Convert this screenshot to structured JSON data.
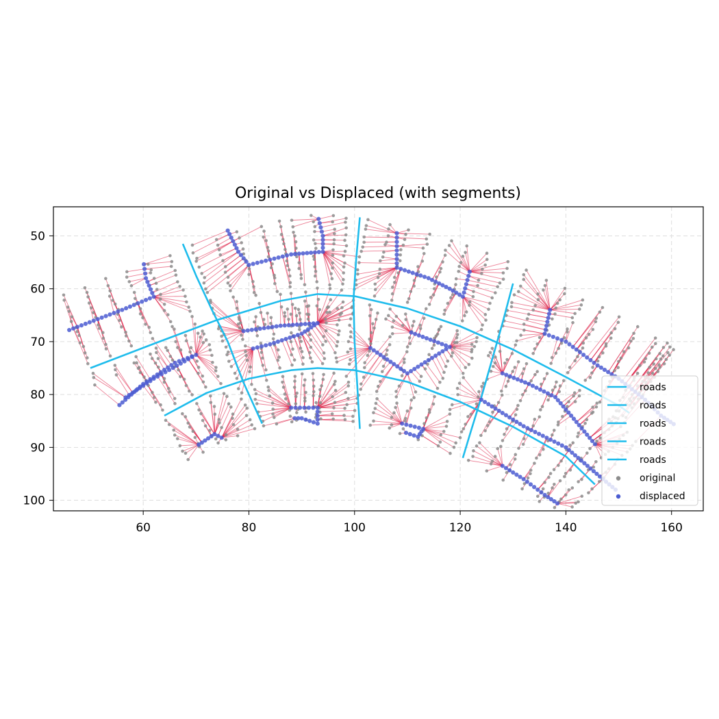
{
  "chart_data": {
    "type": "scatter",
    "title": "Original vs Displaced (with segments)",
    "xlabel": "",
    "ylabel": "",
    "xlim": [
      43,
      166
    ],
    "ylim": [
      102,
      44.5
    ],
    "y_inverted": true,
    "grid": true,
    "legend_placement": "lower right",
    "x_ticks": [
      "60",
      "80",
      "100",
      "120",
      "140",
      "160"
    ],
    "x_tick_values": [
      60,
      80,
      100,
      120,
      140,
      160
    ],
    "y_ticks": [
      "50",
      "60",
      "70",
      "80",
      "90",
      "100"
    ],
    "y_tick_values": [
      50,
      60,
      70,
      80,
      90,
      100
    ],
    "colors": {
      "roads": "#1ebcec",
      "original": "#8c8c8c",
      "displaced": "#4a5bd1",
      "segments": "#dc143c",
      "grid": "#dddddd"
    },
    "legend": [
      {
        "label": "roads",
        "kind": "line",
        "color": "#1ebcec"
      },
      {
        "label": "roads",
        "kind": "line",
        "color": "#1ebcec"
      },
      {
        "label": "roads",
        "kind": "line",
        "color": "#1ebcec"
      },
      {
        "label": "roads",
        "kind": "line",
        "color": "#1ebcec"
      },
      {
        "label": "roads",
        "kind": "line",
        "color": "#1ebcec"
      },
      {
        "label": "original",
        "kind": "marker",
        "color": "#8c8c8c"
      },
      {
        "label": "displaced",
        "kind": "marker",
        "color": "#4a5bd1"
      }
    ],
    "roads": [
      {
        "name": "roads",
        "x": [
          50,
          62,
          74,
          86,
          93,
          100,
          110,
          120,
          130,
          140,
          150,
          152
        ],
        "y": [
          75,
          70.4,
          65.9,
          62.3,
          61.0,
          61.4,
          63.7,
          67.1,
          71.5,
          76.7,
          82.1,
          83.5
        ]
      },
      {
        "name": "roads",
        "x": [
          64,
          72,
          80,
          88,
          93,
          100,
          110,
          120,
          130,
          140,
          145.5
        ],
        "y": [
          84,
          79.7,
          77.0,
          75.4,
          75.0,
          75.4,
          77.6,
          81.4,
          86.1,
          91.7,
          97.0
        ]
      },
      {
        "name": "roads",
        "x": [
          67.5,
          70,
          73,
          76,
          79,
          82.5
        ],
        "y": [
          51.5,
          57.5,
          64.0,
          70.0,
          77.8,
          85.5
        ]
      },
      {
        "name": "roads",
        "x": [
          101,
          100.3,
          99.8,
          100,
          100.5,
          101
        ],
        "y": [
          46.5,
          54.5,
          62.0,
          70.0,
          78.0,
          86.5
        ]
      },
      {
        "name": "roads",
        "x": [
          130,
          128,
          126,
          124,
          122,
          120.5
        ],
        "y": [
          59,
          66.5,
          73.5,
          80.5,
          87.0,
          92.0
        ]
      }
    ],
    "displaced_outlines": [
      {
        "x": [
          46,
          56,
          62,
          60.5,
          60
        ],
        "y": [
          67.8,
          64.0,
          61.5,
          58.0,
          54.5
        ]
      },
      {
        "x": [
          76,
          78,
          80,
          88,
          94,
          94,
          93
        ],
        "y": [
          49.0,
          53.0,
          55.5,
          53.5,
          53.0,
          50.0,
          46.0
        ]
      },
      {
        "x": [
          108,
          108,
          114,
          118,
          120.5,
          122
        ],
        "y": [
          49.5,
          56.0,
          58.0,
          60.0,
          61.5,
          56.0
        ]
      },
      {
        "x": [
          137,
          136,
          140,
          146,
          150,
          155,
          158,
          161
        ],
        "y": [
          64.0,
          68.5,
          70.0,
          74.5,
          77.0,
          81.0,
          84.0,
          86.0
        ]
      },
      {
        "x": [
          79,
          86,
          93,
          90,
          84,
          80
        ],
        "y": [
          68.0,
          67.0,
          66.5,
          68.5,
          70.5,
          71.5
        ]
      },
      {
        "x": [
          55.5,
          60,
          66,
          70,
          62,
          56
        ],
        "y": [
          82.0,
          78.0,
          74.0,
          72.5,
          77.0,
          81.0
        ]
      },
      {
        "x": [
          103,
          110,
          118,
          110
        ],
        "y": [
          71.2,
          76.0,
          71.0,
          68.0
        ]
      },
      {
        "x": [
          124,
          132,
          140,
          147,
          150
        ],
        "y": [
          81.0,
          86.0,
          90.0,
          96.0,
          98.5
        ]
      },
      {
        "x": [
          128,
          133,
          138,
          141,
          146
        ],
        "y": [
          76.0,
          78.0,
          80.5,
          84.0,
          90.0
        ]
      },
      {
        "x": [
          128,
          132,
          136,
          139
        ],
        "y": [
          93.5,
          96.0,
          99.0,
          101.0
        ]
      },
      {
        "x": [
          88,
          93,
          93,
          90,
          88
        ],
        "y": [
          82.5,
          82.5,
          85.5,
          84.5,
          84.5
        ]
      },
      {
        "x": [
          109,
          113,
          112,
          109
        ],
        "y": [
          85.5,
          86.5,
          88.0,
          87.0
        ]
      },
      {
        "x": [
          70.5,
          73.5,
          75.5
        ],
        "y": [
          89.5,
          87.5,
          88.5
        ]
      }
    ]
  }
}
